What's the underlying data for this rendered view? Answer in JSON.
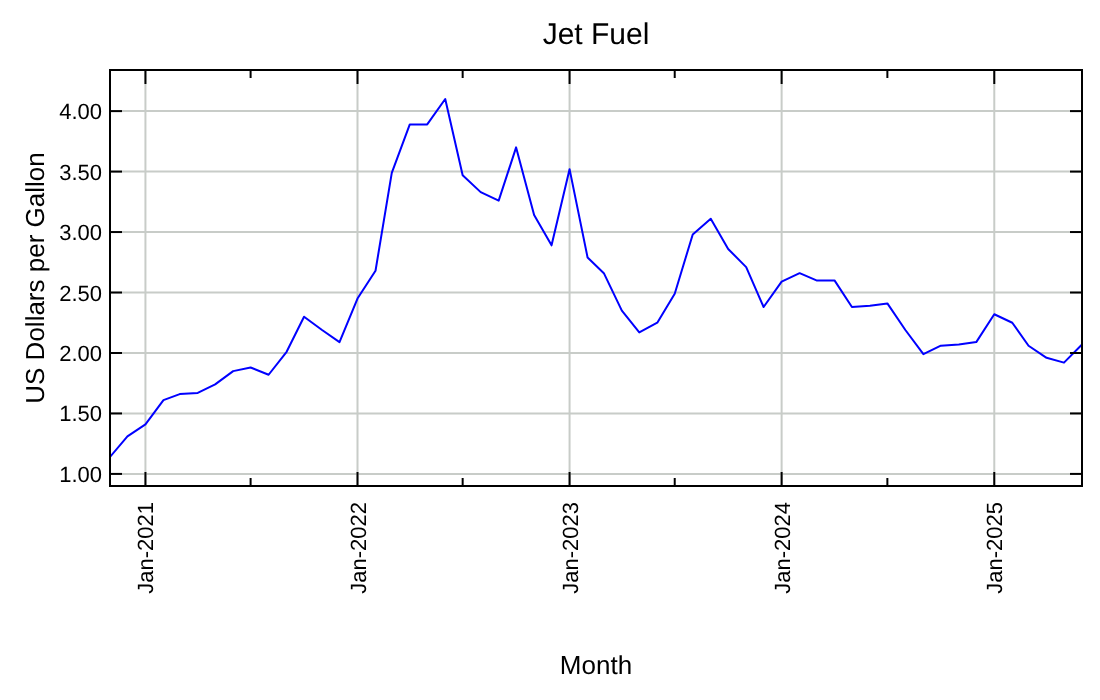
{
  "chart_data": {
    "type": "line",
    "title": "Jet Fuel",
    "xlabel": "Month",
    "ylabel": "US Dollars per Gallon",
    "x": [
      "2020-11",
      "2020-12",
      "2021-01",
      "2021-02",
      "2021-03",
      "2021-04",
      "2021-05",
      "2021-06",
      "2021-07",
      "2021-08",
      "2021-09",
      "2021-10",
      "2021-11",
      "2021-12",
      "2022-01",
      "2022-02",
      "2022-03",
      "2022-04",
      "2022-05",
      "2022-06",
      "2022-07",
      "2022-08",
      "2022-09",
      "2022-10",
      "2022-11",
      "2022-12",
      "2023-01",
      "2023-02",
      "2023-03",
      "2023-04",
      "2023-05",
      "2023-06",
      "2023-07",
      "2023-08",
      "2023-09",
      "2023-10",
      "2023-11",
      "2023-12",
      "2024-01",
      "2024-02",
      "2024-03",
      "2024-04",
      "2024-05",
      "2024-06",
      "2024-07",
      "2024-08",
      "2024-09",
      "2024-10",
      "2024-11",
      "2024-12",
      "2025-01",
      "2025-02",
      "2025-03",
      "2025-04",
      "2025-05",
      "2025-06"
    ],
    "series": [
      {
        "color": "#0000ff",
        "values": [
          1.14,
          1.31,
          1.41,
          1.61,
          1.66,
          1.67,
          1.74,
          1.85,
          1.88,
          1.82,
          2.01,
          2.3,
          2.19,
          2.09,
          2.45,
          2.68,
          3.49,
          3.89,
          3.89,
          4.1,
          3.47,
          3.33,
          3.26,
          3.7,
          3.14,
          2.89,
          3.52,
          2.79,
          2.66,
          2.35,
          2.17,
          2.25,
          2.49,
          2.98,
          3.11,
          2.86,
          2.71,
          2.38,
          2.59,
          2.66,
          2.6,
          2.6,
          2.38,
          2.39,
          2.41,
          2.19,
          1.99,
          2.06,
          2.07,
          2.09,
          2.32,
          2.25,
          2.06,
          1.96,
          1.92,
          2.07
        ]
      }
    ],
    "xlim": [
      "2020-11",
      "2025-06"
    ],
    "xticks": [
      {
        "value": "2021-01",
        "label": "Jan-2021"
      },
      {
        "value": "2021-07",
        "label": null
      },
      {
        "value": "2022-01",
        "label": "Jan-2022"
      },
      {
        "value": "2022-07",
        "label": null
      },
      {
        "value": "2023-01",
        "label": "Jan-2023"
      },
      {
        "value": "2023-07",
        "label": null
      },
      {
        "value": "2024-01",
        "label": "Jan-2024"
      },
      {
        "value": "2024-07",
        "label": null
      },
      {
        "value": "2025-01",
        "label": "Jan-2025"
      }
    ],
    "ylim": [
      0.9,
      4.34
    ],
    "yticks": [
      {
        "value": 1,
        "label": "1.00"
      },
      {
        "value": 1.5,
        "label": "1.50"
      },
      {
        "value": 2,
        "label": "2.00"
      },
      {
        "value": 2.5,
        "label": "2.50"
      },
      {
        "value": 3,
        "label": "3.00"
      },
      {
        "value": 3.5,
        "label": "3.50"
      },
      {
        "value": 4,
        "label": "4.00"
      }
    ],
    "grid": true,
    "marker": "none",
    "line_style": "solid"
  }
}
